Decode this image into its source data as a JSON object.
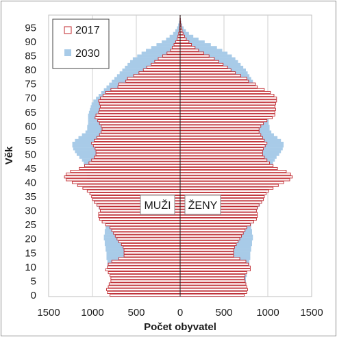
{
  "chart_data": {
    "type": "bar",
    "orientation": "horizontal-population-pyramid",
    "title": "",
    "xlabel": "Počet obyvatel",
    "ylabel": "Věk",
    "xlim": [
      -1500,
      1500
    ],
    "x_tick_labels": [
      "1500",
      "1000",
      "500",
      "0",
      "500",
      "1000",
      "1500"
    ],
    "x_tick_values": [
      -1500,
      -1000,
      -500,
      0,
      500,
      1000,
      1500
    ],
    "y_tick_labels": [
      "0",
      "5",
      "10",
      "15",
      "20",
      "25",
      "30",
      "35",
      "40",
      "45",
      "50",
      "55",
      "60",
      "65",
      "70",
      "75",
      "80",
      "85",
      "90",
      "95"
    ],
    "ages": [
      0,
      1,
      2,
      3,
      4,
      5,
      6,
      7,
      8,
      9,
      10,
      11,
      12,
      13,
      14,
      15,
      16,
      17,
      18,
      19,
      20,
      21,
      22,
      23,
      24,
      25,
      26,
      27,
      28,
      29,
      30,
      31,
      32,
      33,
      34,
      35,
      36,
      37,
      38,
      39,
      40,
      41,
      42,
      43,
      44,
      45,
      46,
      47,
      48,
      49,
      50,
      51,
      52,
      53,
      54,
      55,
      56,
      57,
      58,
      59,
      60,
      61,
      62,
      63,
      64,
      65,
      66,
      67,
      68,
      69,
      70,
      71,
      72,
      73,
      74,
      75,
      76,
      77,
      78,
      79,
      80,
      81,
      82,
      83,
      84,
      85,
      86,
      87,
      88,
      89,
      90,
      91,
      92,
      93,
      94,
      95,
      96,
      97,
      98,
      99
    ],
    "grid": "vertical",
    "legend_position": "top-left",
    "side_labels": {
      "left": "MUŽI",
      "right": "ŽENY"
    },
    "series": [
      {
        "name": "2030",
        "style": "filled",
        "color": "#a8cbe8",
        "male": [
          770,
          770,
          770,
          780,
          780,
          790,
          790,
          800,
          800,
          810,
          820,
          830,
          830,
          840,
          840,
          840,
          850,
          850,
          860,
          860,
          870,
          870,
          860,
          860,
          850,
          850,
          860,
          870,
          880,
          890,
          910,
          930,
          950,
          970,
          990,
          1000,
          1010,
          1020,
          1030,
          1040,
          1050,
          1060,
          1060,
          1060,
          1070,
          1080,
          1090,
          1100,
          1120,
          1150,
          1180,
          1200,
          1220,
          1230,
          1230,
          1200,
          1160,
          1120,
          1080,
          1060,
          1060,
          1050,
          1050,
          1050,
          1050,
          1040,
          1030,
          1020,
          1010,
          990,
          960,
          930,
          900,
          870,
          840,
          810,
          780,
          750,
          720,
          690,
          660,
          630,
          600,
          570,
          540,
          490,
          440,
          390,
          330,
          270,
          210,
          160,
          120,
          80,
          55,
          35,
          22,
          12,
          6,
          3
        ],
        "female": [
          730,
          730,
          730,
          740,
          740,
          750,
          750,
          760,
          760,
          770,
          780,
          790,
          790,
          800,
          800,
          800,
          810,
          810,
          820,
          820,
          830,
          830,
          820,
          820,
          810,
          810,
          820,
          830,
          840,
          850,
          870,
          890,
          910,
          930,
          950,
          960,
          970,
          980,
          990,
          1000,
          1010,
          1020,
          1020,
          1020,
          1030,
          1040,
          1050,
          1060,
          1080,
          1100,
          1130,
          1150,
          1170,
          1180,
          1180,
          1150,
          1110,
          1070,
          1040,
          1020,
          1020,
          1010,
          1010,
          1010,
          1010,
          1000,
          1000,
          990,
          980,
          970,
          950,
          930,
          910,
          890,
          870,
          850,
          830,
          810,
          790,
          770,
          750,
          720,
          690,
          660,
          630,
          590,
          540,
          480,
          420,
          350,
          280,
          210,
          150,
          100,
          65,
          40,
          24,
          13,
          7,
          3
        ]
      },
      {
        "name": "2017",
        "style": "outlined",
        "color": "#c0272d",
        "male": [
          800,
          830,
          840,
          820,
          810,
          790,
          790,
          800,
          820,
          850,
          830,
          820,
          780,
          700,
          640,
          640,
          640,
          650,
          670,
          700,
          720,
          740,
          760,
          780,
          800,
          850,
          890,
          920,
          930,
          930,
          910,
          920,
          950,
          980,
          1000,
          1010,
          1030,
          1060,
          1110,
          1170,
          1230,
          1300,
          1320,
          1300,
          1250,
          1150,
          1090,
          1040,
          1010,
          980,
          960,
          960,
          970,
          990,
          1010,
          980,
          950,
          920,
          900,
          890,
          900,
          920,
          940,
          970,
          960,
          930,
          920,
          910,
          920,
          930,
          910,
          880,
          850,
          790,
          710,
          700,
          620,
          600,
          530,
          470,
          420,
          380,
          330,
          290,
          250,
          200,
          150,
          110,
          90,
          70,
          50,
          35,
          25,
          17,
          10,
          6,
          4,
          3,
          2,
          1
        ],
        "female": [
          730,
          760,
          770,
          760,
          750,
          740,
          730,
          740,
          760,
          800,
          800,
          780,
          750,
          680,
          610,
          610,
          610,
          620,
          640,
          660,
          680,
          700,
          720,
          740,
          760,
          800,
          840,
          870,
          880,
          880,
          870,
          880,
          900,
          930,
          950,
          960,
          980,
          1010,
          1060,
          1120,
          1180,
          1250,
          1280,
          1260,
          1210,
          1110,
          1060,
          1020,
          990,
          960,
          940,
          940,
          950,
          970,
          990,
          960,
          940,
          920,
          900,
          900,
          920,
          950,
          990,
          1050,
          1080,
          1080,
          1090,
          1080,
          1090,
          1100,
          1100,
          1070,
          1030,
          960,
          880,
          860,
          780,
          760,
          690,
          630,
          580,
          540,
          490,
          440,
          390,
          330,
          270,
          210,
          170,
          130,
          100,
          70,
          50,
          33,
          22,
          14,
          9,
          5,
          3,
          1
        ]
      }
    ]
  }
}
